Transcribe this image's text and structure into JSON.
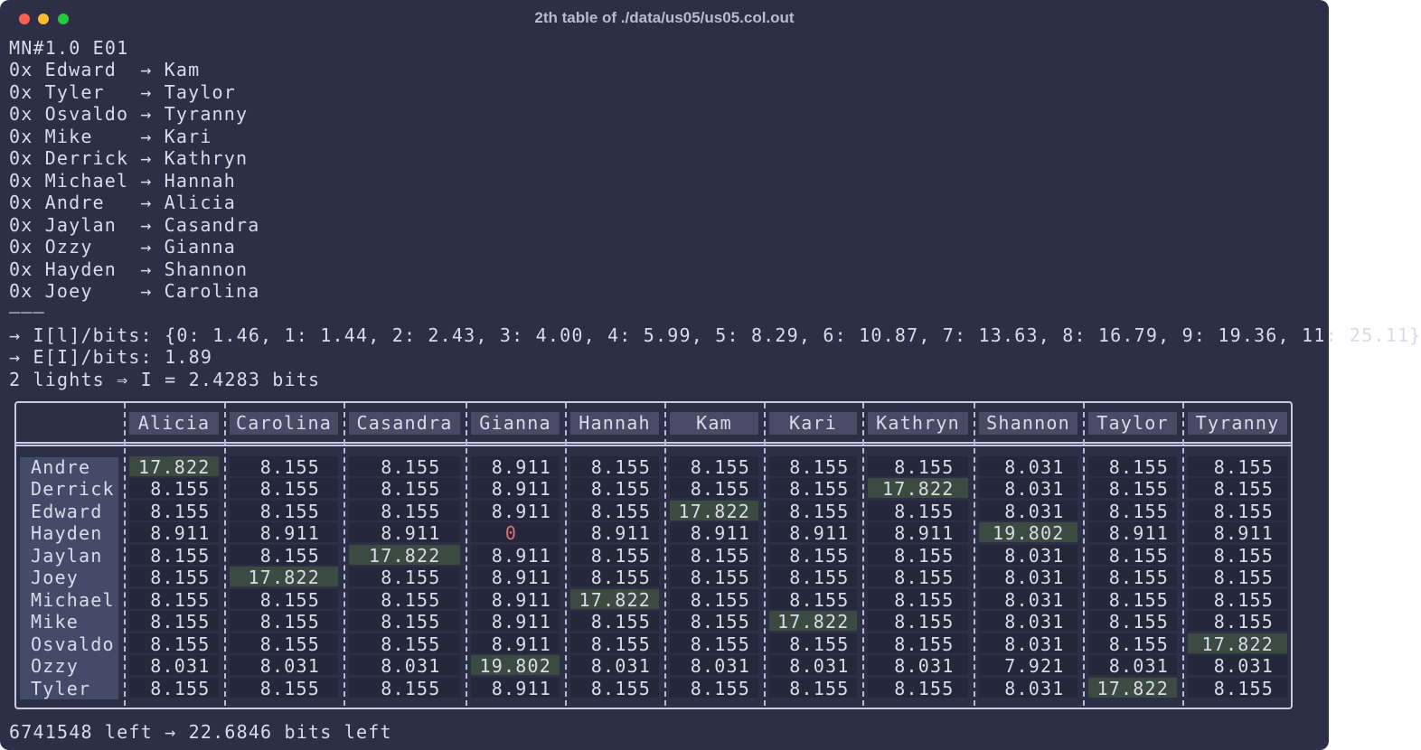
{
  "window": {
    "title": "2th table of ./data/us05/us05.col.out"
  },
  "header": "MN#1.0 E01",
  "mappings": [
    {
      "prefix": "0x",
      "from": "Edward",
      "arrow": "→",
      "to": "Kam"
    },
    {
      "prefix": "0x",
      "from": "Tyler",
      "arrow": "→",
      "to": "Taylor"
    },
    {
      "prefix": "0x",
      "from": "Osvaldo",
      "arrow": "→",
      "to": "Tyranny"
    },
    {
      "prefix": "0x",
      "from": "Mike",
      "arrow": "→",
      "to": "Kari"
    },
    {
      "prefix": "0x",
      "from": "Derrick",
      "arrow": "→",
      "to": "Kathryn"
    },
    {
      "prefix": "0x",
      "from": "Michael",
      "arrow": "→",
      "to": "Hannah"
    },
    {
      "prefix": "0x",
      "from": "Andre",
      "arrow": "→",
      "to": "Alicia"
    },
    {
      "prefix": "0x",
      "from": "Jaylan",
      "arrow": "→",
      "to": "Casandra"
    },
    {
      "prefix": "0x",
      "from": "Ozzy",
      "arrow": "→",
      "to": "Gianna"
    },
    {
      "prefix": "0x",
      "from": "Hayden",
      "arrow": "→",
      "to": "Shannon"
    },
    {
      "prefix": "0x",
      "from": "Joey",
      "arrow": "→",
      "to": "Carolina"
    }
  ],
  "separator": "───",
  "summary": [
    "→ I[l]/bits: {0: 1.46, 1: 1.44, 2: 2.43, 3: 4.00, 4: 5.99, 5: 8.29, 6: 10.87, 7: 13.63, 8: 16.79, 9: 19.36, 11: 25.11}",
    "→ E[I]/bits: 1.89",
    "2 lights ⇒ I = 2.4283 bits"
  ],
  "table": {
    "columns": [
      "Alicia",
      "Carolina",
      "Casandra",
      "Gianna",
      "Hannah",
      "Kam",
      "Kari",
      "Kathryn",
      "Shannon",
      "Taylor",
      "Tyranny"
    ],
    "rows": [
      {
        "name": "Andre",
        "cells": [
          17.822,
          8.155,
          8.155,
          8.911,
          8.155,
          8.155,
          8.155,
          8.155,
          8.031,
          8.155,
          8.155
        ]
      },
      {
        "name": "Derrick",
        "cells": [
          8.155,
          8.155,
          8.155,
          8.911,
          8.155,
          8.155,
          8.155,
          17.822,
          8.031,
          8.155,
          8.155
        ]
      },
      {
        "name": "Edward",
        "cells": [
          8.155,
          8.155,
          8.155,
          8.911,
          8.155,
          17.822,
          8.155,
          8.155,
          8.031,
          8.155,
          8.155
        ]
      },
      {
        "name": "Hayden",
        "cells": [
          8.911,
          8.911,
          8.911,
          0,
          8.911,
          8.911,
          8.911,
          8.911,
          19.802,
          8.911,
          8.911
        ]
      },
      {
        "name": "Jaylan",
        "cells": [
          8.155,
          8.155,
          17.822,
          8.911,
          8.155,
          8.155,
          8.155,
          8.155,
          8.031,
          8.155,
          8.155
        ]
      },
      {
        "name": "Joey",
        "cells": [
          8.155,
          17.822,
          8.155,
          8.911,
          8.155,
          8.155,
          8.155,
          8.155,
          8.031,
          8.155,
          8.155
        ]
      },
      {
        "name": "Michael",
        "cells": [
          8.155,
          8.155,
          8.155,
          8.911,
          17.822,
          8.155,
          8.155,
          8.155,
          8.031,
          8.155,
          8.155
        ]
      },
      {
        "name": "Mike",
        "cells": [
          8.155,
          8.155,
          8.155,
          8.911,
          8.155,
          8.155,
          17.822,
          8.155,
          8.031,
          8.155,
          8.155
        ]
      },
      {
        "name": "Osvaldo",
        "cells": [
          8.155,
          8.155,
          8.155,
          8.911,
          8.155,
          8.155,
          8.155,
          8.155,
          8.031,
          8.155,
          17.822
        ]
      },
      {
        "name": "Ozzy",
        "cells": [
          8.031,
          8.031,
          8.031,
          19.802,
          8.031,
          8.031,
          8.031,
          8.031,
          7.921,
          8.031,
          8.031
        ]
      },
      {
        "name": "Tyler",
        "cells": [
          8.155,
          8.155,
          8.155,
          8.911,
          8.155,
          8.155,
          8.155,
          8.155,
          8.031,
          17.822,
          8.155
        ]
      }
    ]
  },
  "footer": "6741548 left → 22.6846 bits left"
}
